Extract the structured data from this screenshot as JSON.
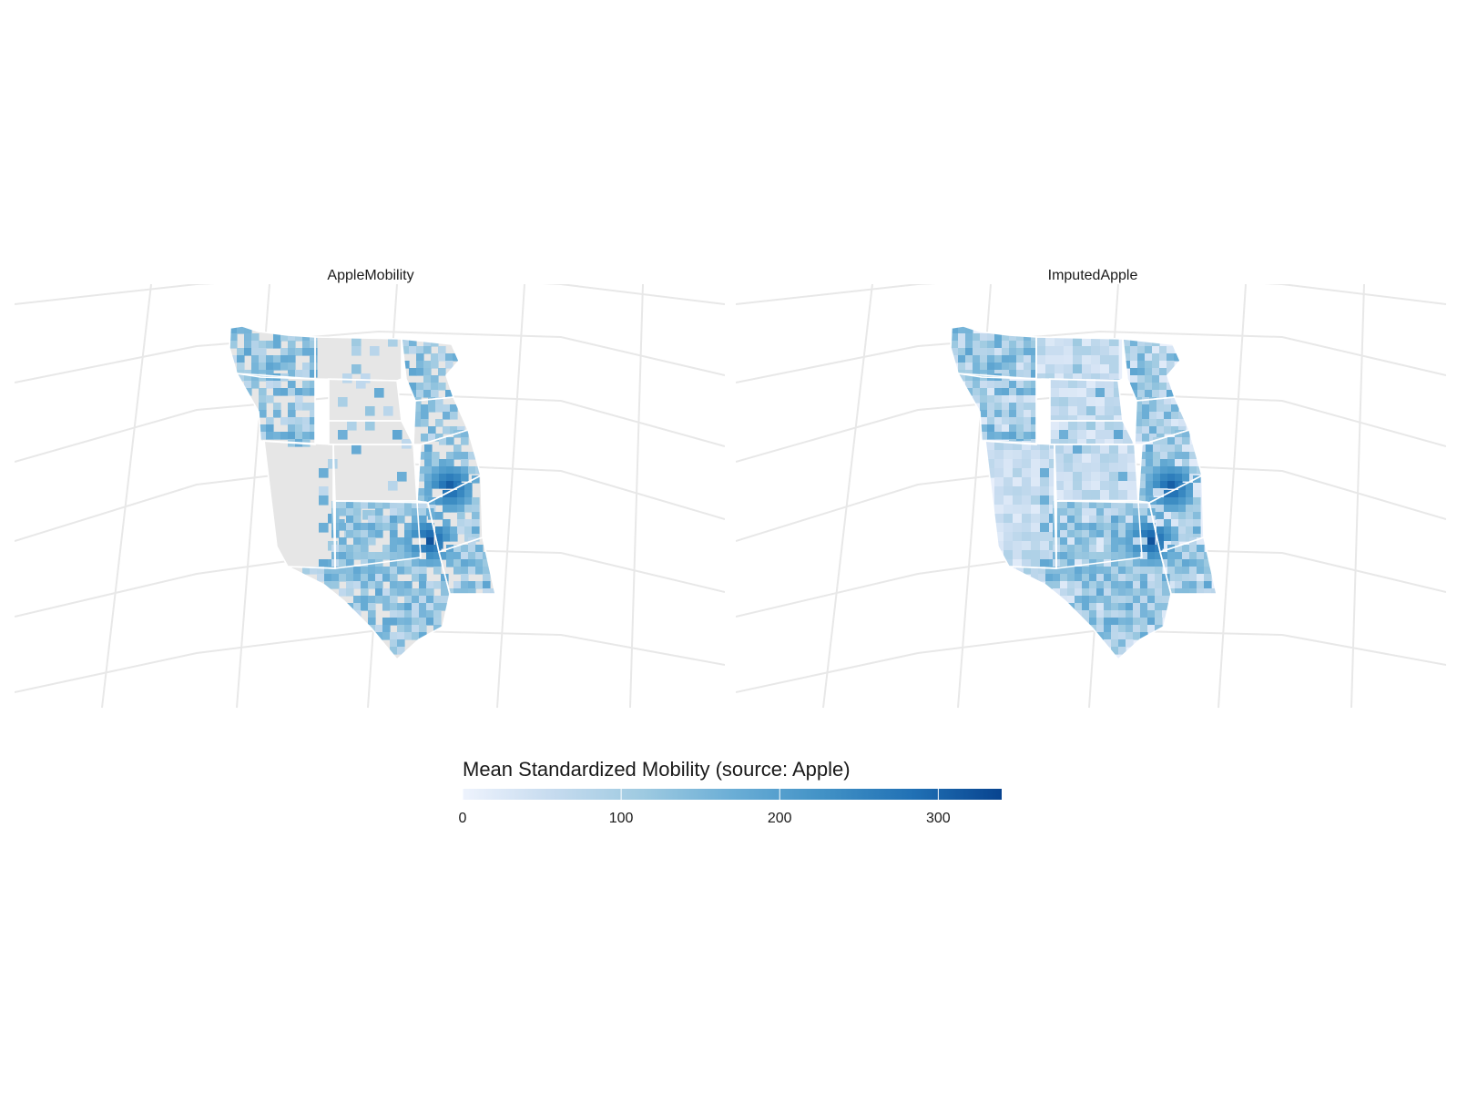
{
  "panels": [
    {
      "title": "AppleMobility",
      "missing_fill": "#e6e6e6"
    },
    {
      "title": "ImputedApple",
      "missing_fill": "#e8effb"
    }
  ],
  "legend": {
    "title": "Mean Standardized Mobility (source: Apple)",
    "min": 0,
    "max": 340,
    "ticks": [
      {
        "value": 0,
        "label": "0"
      },
      {
        "value": 100,
        "label": "100"
      },
      {
        "value": 200,
        "label": "200"
      },
      {
        "value": 300,
        "label": "300"
      }
    ],
    "colors": [
      "#eef3fd",
      "#c6dbef",
      "#9ecae1",
      "#6baed6",
      "#4292c6",
      "#2171b5",
      "#08448f"
    ]
  },
  "colors": {
    "graticule": "#e8e8e8",
    "state_border": "#ffffff"
  }
}
